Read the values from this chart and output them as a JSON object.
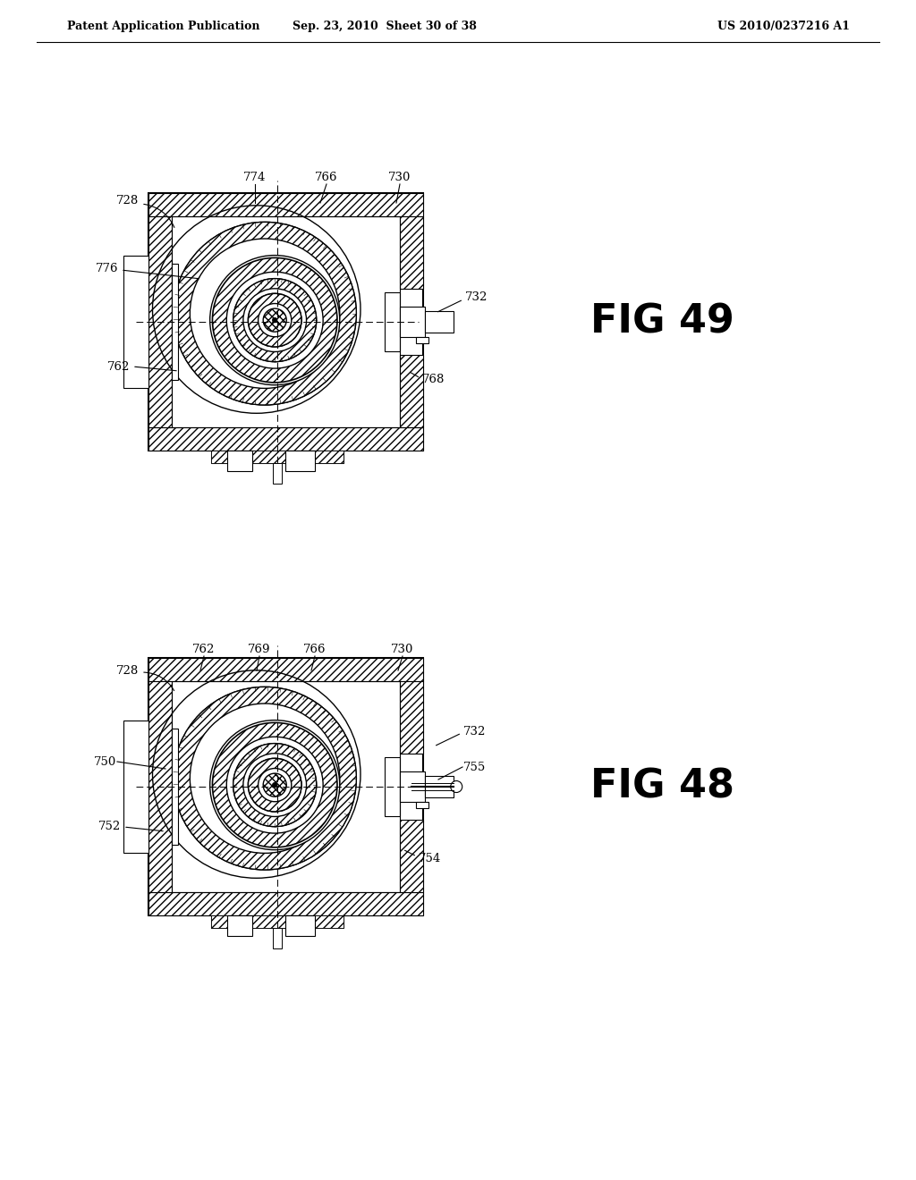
{
  "header_left": "Patent Application Publication",
  "header_mid": "Sep. 23, 2010  Sheet 30 of 38",
  "header_right": "US 2010/0237216 A1",
  "fig49_label": "FIG 49",
  "fig48_label": "FIG 48",
  "background": "#ffffff",
  "line_color": "#000000"
}
